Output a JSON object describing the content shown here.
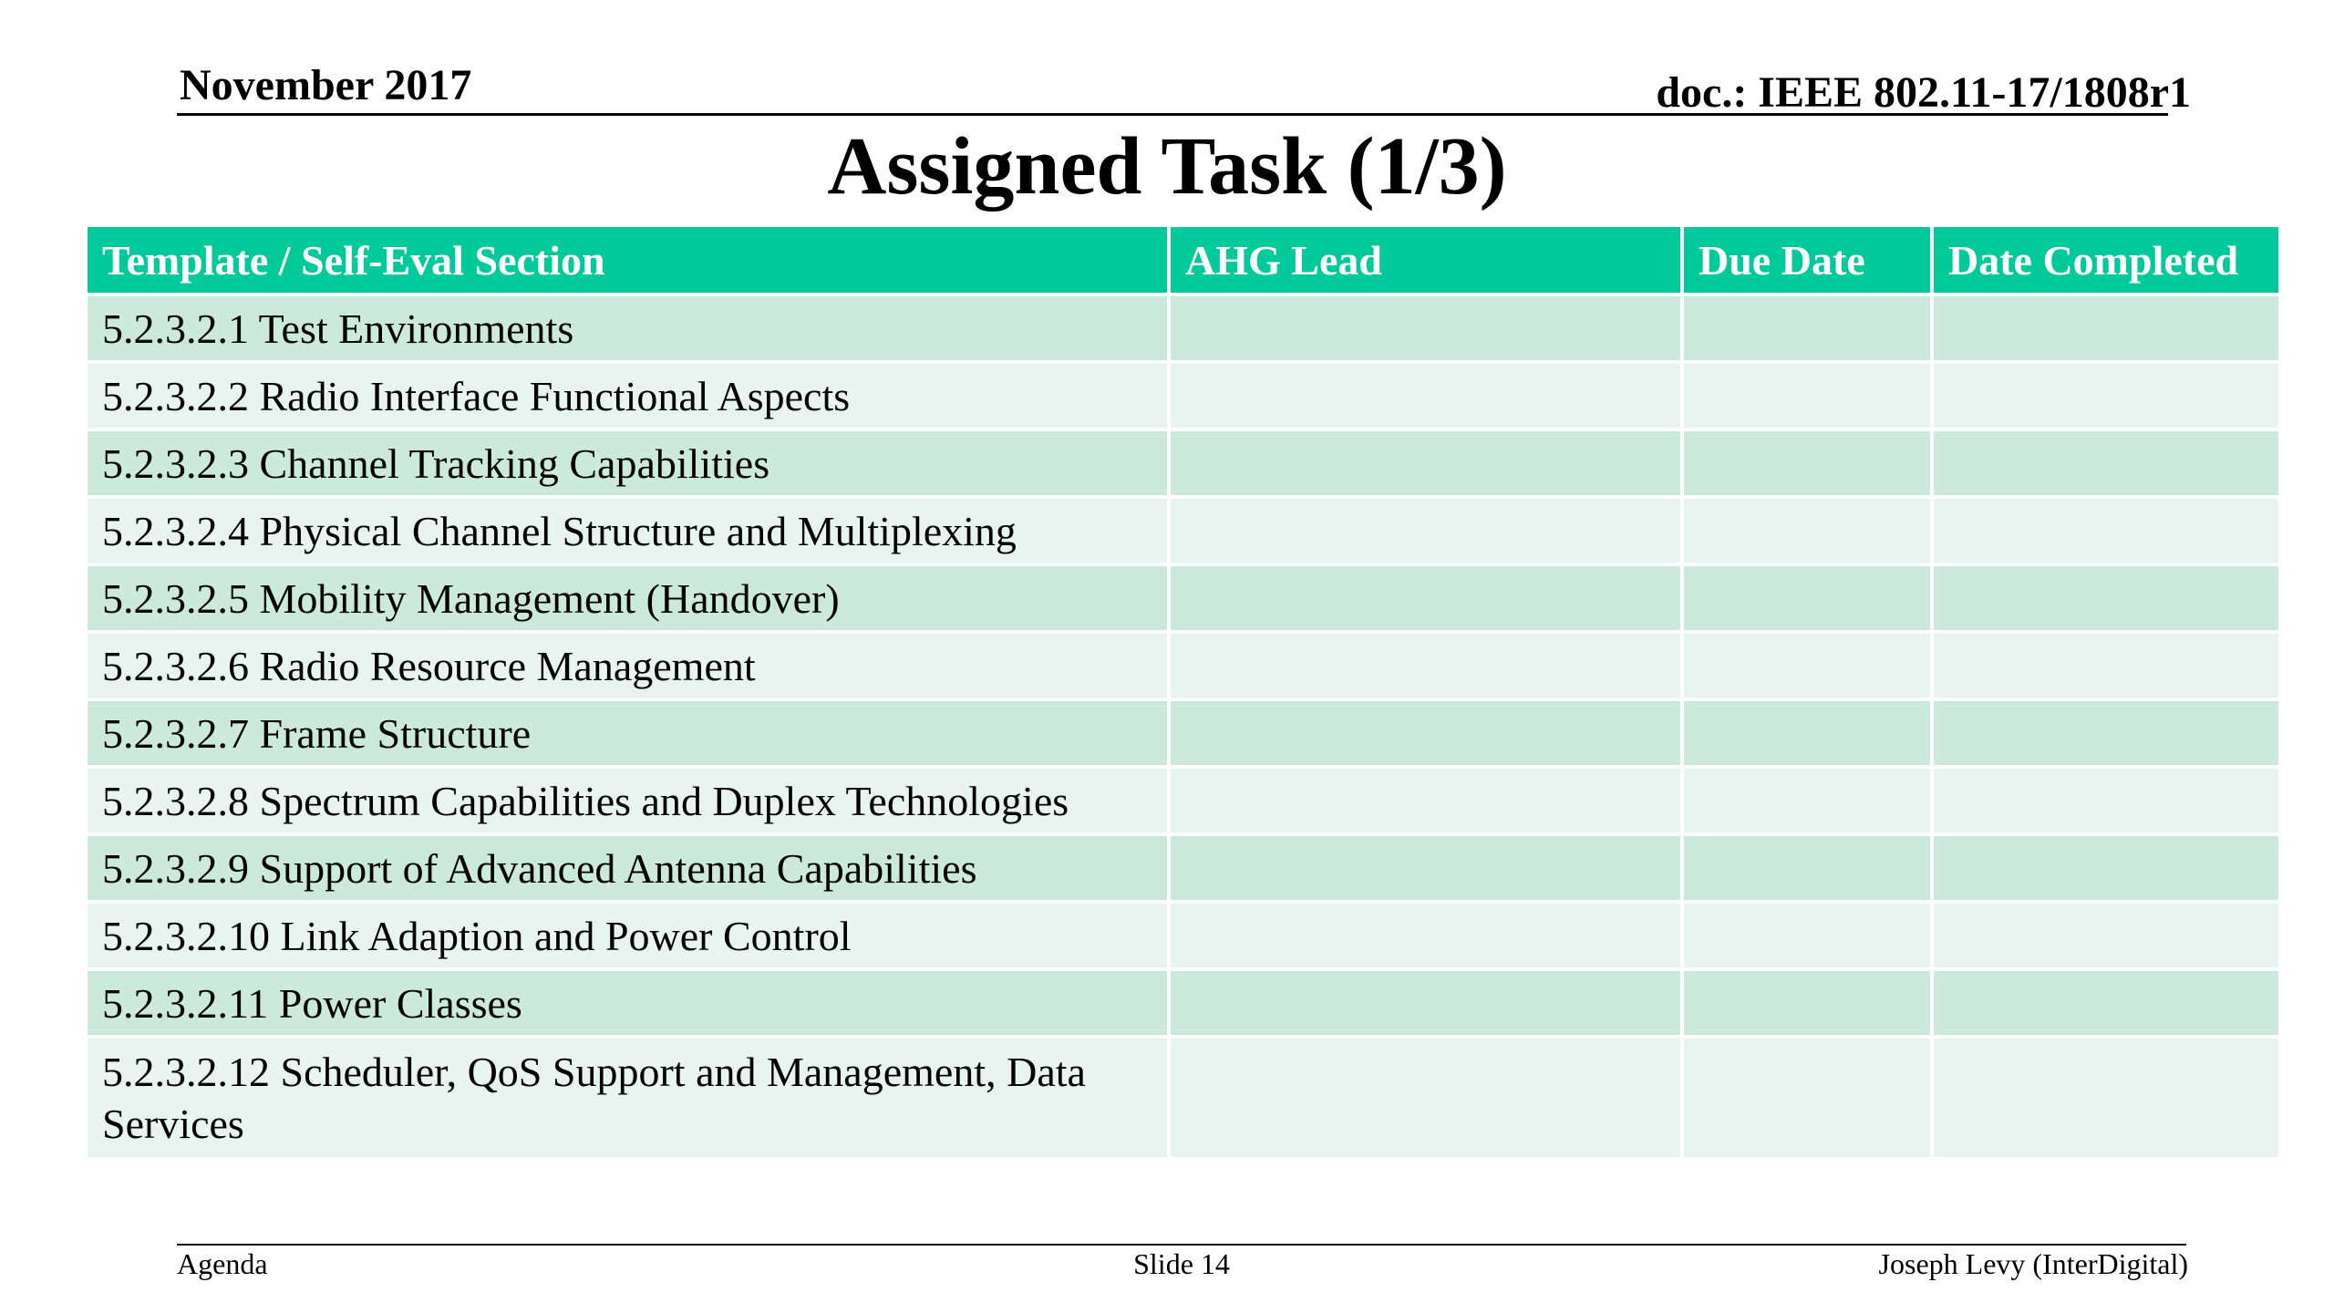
{
  "header": {
    "date": "November 2017",
    "doc": "doc.: IEEE 802.11-17/1808r1"
  },
  "title": "Assigned Task (1/3)",
  "table": {
    "columns": [
      "Template / Self-Eval Section",
      "AHG Lead",
      "Due Date",
      "Date Completed"
    ],
    "rows": [
      [
        "5.2.3.2.1 Test Environments",
        "",
        "",
        ""
      ],
      [
        "5.2.3.2.2 Radio Interface Functional Aspects",
        "",
        "",
        ""
      ],
      [
        "5.2.3.2.3 Channel Tracking Capabilities",
        "",
        "",
        ""
      ],
      [
        "5.2.3.2.4 Physical Channel Structure and Multiplexing",
        "",
        "",
        ""
      ],
      [
        "5.2.3.2.5 Mobility Management (Handover)",
        "",
        "",
        ""
      ],
      [
        "5.2.3.2.6 Radio Resource Management",
        "",
        "",
        ""
      ],
      [
        "5.2.3.2.7 Frame Structure",
        "",
        "",
        ""
      ],
      [
        "5.2.3.2.8 Spectrum Capabilities and Duplex Technologies",
        "",
        "",
        ""
      ],
      [
        "5.2.3.2.9 Support of Advanced Antenna Capabilities",
        "",
        "",
        ""
      ],
      [
        "5.2.3.2.10 Link Adaption and Power Control",
        "",
        "",
        ""
      ],
      [
        "5.2.3.2.11 Power Classes",
        "",
        "",
        ""
      ],
      [
        "5.2.3.2.12 Scheduler, QoS Support and Management, Data Services",
        "",
        "",
        ""
      ]
    ]
  },
  "footer": {
    "left": "Agenda",
    "center": "Slide 14",
    "right": "Joseph Levy (InterDigital)"
  },
  "colors": {
    "header_fill": "#00c99a",
    "row_odd": "#cce9de",
    "row_even": "#e7f4ef"
  }
}
